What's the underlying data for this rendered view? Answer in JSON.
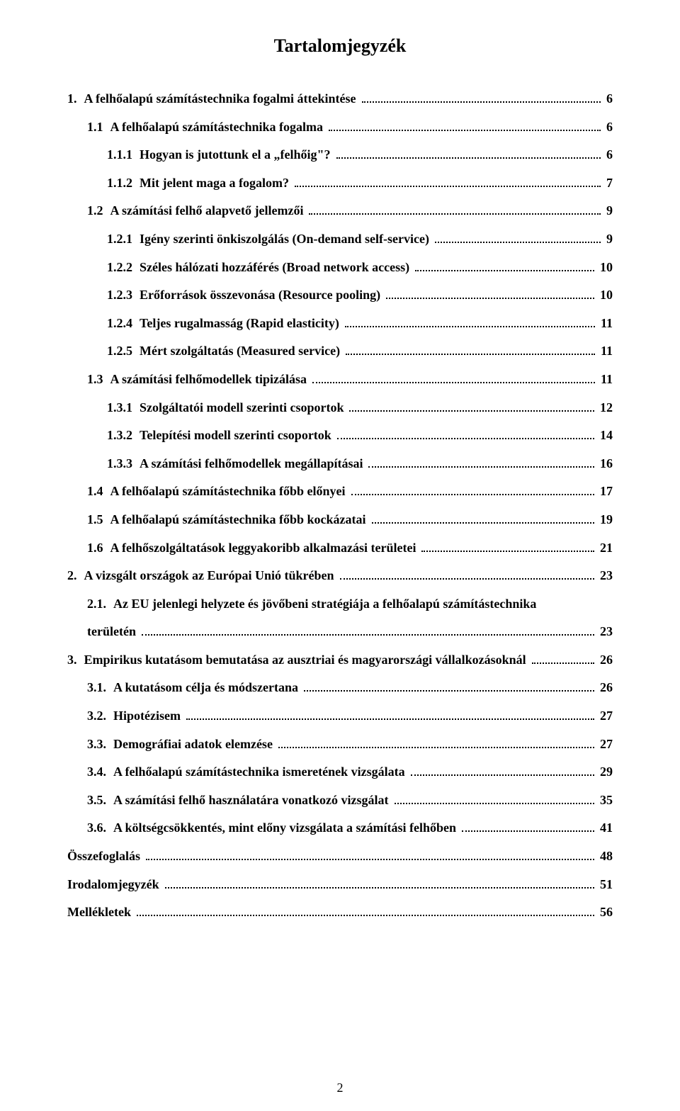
{
  "title": "Tartalomjegyzék",
  "page_number": "2",
  "toc": [
    {
      "indent": 0,
      "num": "1.",
      "text": "A felhőalapú számítástechnika fogalmi áttekintése",
      "page": "6"
    },
    {
      "indent": 1,
      "num": "1.1",
      "text": "A felhőalapú számítástechnika fogalma",
      "page": "6"
    },
    {
      "indent": 2,
      "num": "1.1.1",
      "text": "Hogyan is jutottunk el a „felhőig\"?",
      "page": "6"
    },
    {
      "indent": 2,
      "num": "1.1.2",
      "text": "Mit jelent maga a fogalom?",
      "page": "7"
    },
    {
      "indent": 1,
      "num": "1.2",
      "text": "A számítási felhő alapvető jellemzői",
      "page": "9"
    },
    {
      "indent": 2,
      "num": "1.2.1",
      "text": "Igény szerinti önkiszolgálás (On-demand self-service)",
      "page": "9"
    },
    {
      "indent": 2,
      "num": "1.2.2",
      "text": "Széles hálózati hozzáférés (Broad network access)",
      "page": "10"
    },
    {
      "indent": 2,
      "num": "1.2.3",
      "text": "Erőforrások összevonása (Resource pooling)",
      "page": "10"
    },
    {
      "indent": 2,
      "num": "1.2.4",
      "text": "Teljes rugalmasság (Rapid elasticity)",
      "page": "11"
    },
    {
      "indent": 2,
      "num": "1.2.5",
      "text": "Mért szolgáltatás (Measured service)",
      "page": "11"
    },
    {
      "indent": 1,
      "num": "1.3",
      "text": "A számítási felhőmodellek tipizálása",
      "page": "11"
    },
    {
      "indent": 2,
      "num": "1.3.1",
      "text": "Szolgáltatói modell szerinti csoportok",
      "page": "12"
    },
    {
      "indent": 2,
      "num": "1.3.2",
      "text": "Telepítési modell szerinti csoportok",
      "page": "14"
    },
    {
      "indent": 2,
      "num": "1.3.3",
      "text": "A számítási felhőmodellek megállapításai",
      "page": "16"
    },
    {
      "indent": 1,
      "num": "1.4",
      "text": "A felhőalapú számítástechnika főbb előnyei",
      "page": "17"
    },
    {
      "indent": 1,
      "num": "1.5",
      "text": "A felhőalapú számítástechnika főbb kockázatai",
      "page": "19"
    },
    {
      "indent": 1,
      "num": "1.6",
      "text": "A felhőszolgáltatások leggyakoribb alkalmazási területei",
      "page": "21"
    },
    {
      "indent": 0,
      "num": "2.",
      "text": "A vizsgált országok az Európai Unió tükrében",
      "page": "23"
    },
    {
      "indent": 1,
      "num": "2.1.",
      "two_line": true,
      "text_line1": "Az EU jelenlegi helyzete és jövőbeni stratégiája a felhőalapú számítástechnika",
      "text_line2": "területén",
      "page": "23"
    },
    {
      "indent": 0,
      "num": "3.",
      "text": "Empirikus kutatásom bemutatása az ausztriai és magyarországi vállalkozásoknál",
      "page": "26"
    },
    {
      "indent": 1,
      "num": "3.1.",
      "text": "A kutatásom célja és módszertana",
      "page": "26"
    },
    {
      "indent": 1,
      "num": "3.2.",
      "text": "Hipotézisem",
      "page": "27"
    },
    {
      "indent": 1,
      "num": "3.3.",
      "text": "Demográfiai adatok elemzése",
      "page": "27"
    },
    {
      "indent": 1,
      "num": "3.4.",
      "text": "A felhőalapú számítástechnika ismeretének vizsgálata",
      "page": "29"
    },
    {
      "indent": 1,
      "num": "3.5.",
      "text": "A számítási felhő használatára vonatkozó vizsgálat",
      "page": "35"
    },
    {
      "indent": 1,
      "num": "3.6.",
      "text": "A költségcsökkentés, mint előny vizsgálata a számítási felhőben",
      "page": "41"
    },
    {
      "indent": 0,
      "num": "",
      "text": "Összefoglalás",
      "page": "48"
    },
    {
      "indent": 0,
      "num": "",
      "text": "Irodalomjegyzék",
      "page": "51"
    },
    {
      "indent": 0,
      "num": "",
      "text": "Mellékletek",
      "page": "56"
    }
  ]
}
